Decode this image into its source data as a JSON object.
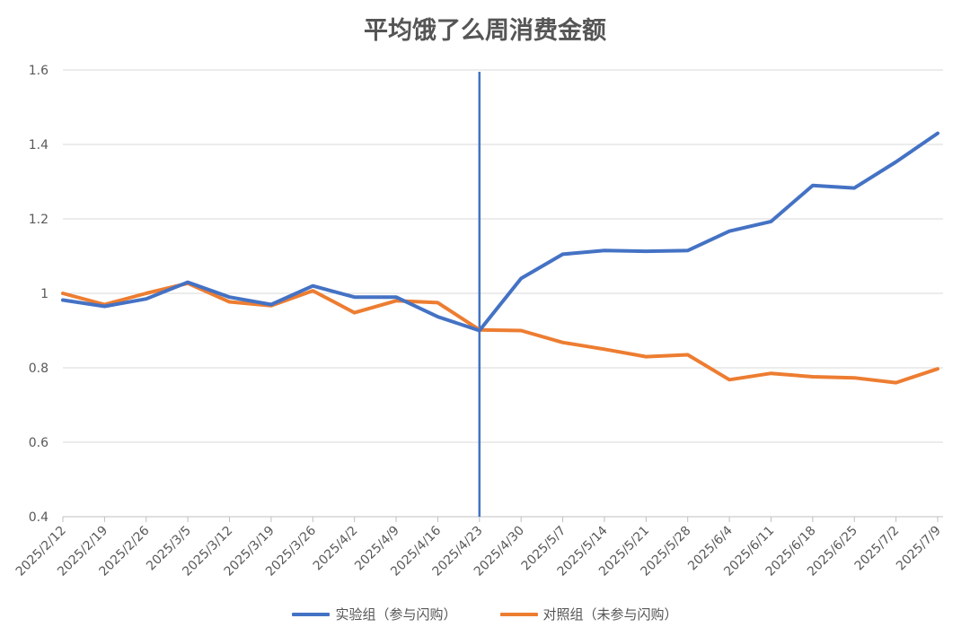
{
  "chart_data": {
    "type": "line",
    "title": "平均饿了么周消费金额",
    "xlabel": "",
    "ylabel": "",
    "x": [
      "2025/2/12",
      "2025/2/19",
      "2025/2/26",
      "2025/3/5",
      "2025/3/12",
      "2025/3/19",
      "2025/3/26",
      "2025/4/2",
      "2025/4/9",
      "2025/4/16",
      "2025/4/23",
      "2025/4/30",
      "2025/5/7",
      "2025/5/14",
      "2025/5/21",
      "2025/5/28",
      "2025/6/4",
      "2025/6/11",
      "2025/6/18",
      "2025/6/25",
      "2025/7/2",
      "2025/7/9"
    ],
    "ylim": [
      0.4,
      1.6
    ],
    "yticks": [
      "0.4",
      "0.6",
      "0.8",
      "1",
      "1.2",
      "1.4",
      "1.6"
    ],
    "grid": true,
    "legend_position": "bottom",
    "vertical_marker_x": "2025/4/23",
    "series": [
      {
        "name": "实验组（参与闪购）",
        "color": "#4472C4",
        "values": [
          0.982,
          0.965,
          0.985,
          1.03,
          0.99,
          0.97,
          1.02,
          0.99,
          0.99,
          0.937,
          0.9,
          1.04,
          1.105,
          1.115,
          1.113,
          1.115,
          1.167,
          1.193,
          1.29,
          1.283,
          1.353,
          1.43
        ]
      },
      {
        "name": "对照组（未参与闪购）",
        "color": "#ED7D31",
        "values": [
          1.0,
          0.97,
          1.0,
          1.027,
          0.977,
          0.967,
          1.007,
          0.948,
          0.98,
          0.975,
          0.902,
          0.9,
          0.868,
          0.85,
          0.83,
          0.835,
          0.768,
          0.785,
          0.776,
          0.773,
          0.76,
          0.797
        ]
      }
    ]
  }
}
